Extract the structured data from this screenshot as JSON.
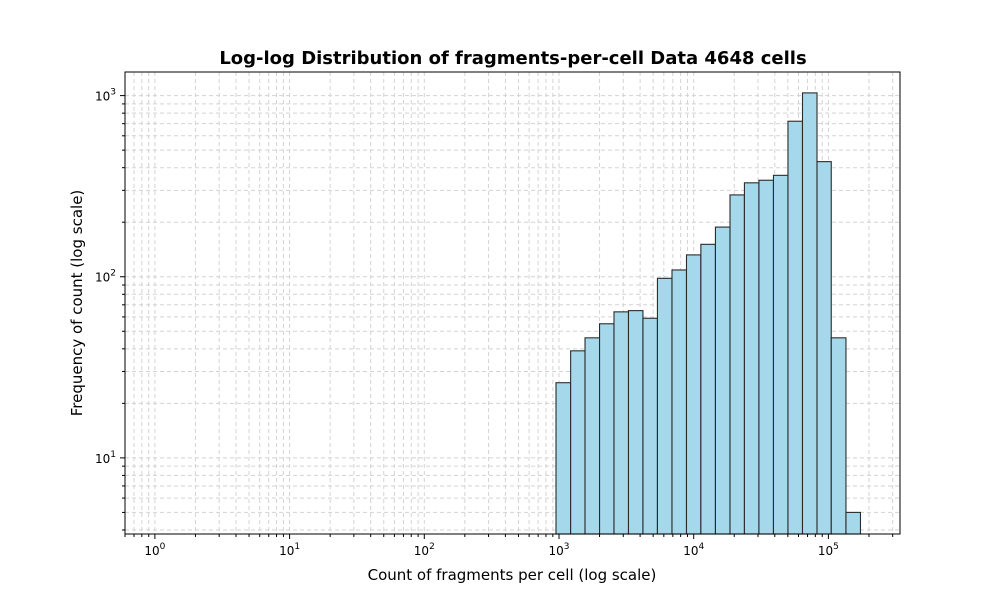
{
  "chart_data": {
    "type": "bar",
    "title": "Log-log Distribution of fragments-per-cell Data 4648 cells",
    "xlabel": "Count of fragments per cell (log scale)",
    "ylabel": "Frequency of count (log scale)",
    "x_scale": "log",
    "y_scale": "log",
    "xlim": [
      0.6,
      340000
    ],
    "ylim": [
      3.8,
      1350
    ],
    "x_ticks": [
      {
        "base": "10",
        "exp": "0",
        "value": 1
      },
      {
        "base": "10",
        "exp": "1",
        "value": 10
      },
      {
        "base": "10",
        "exp": "2",
        "value": 100
      },
      {
        "base": "10",
        "exp": "3",
        "value": 1000
      },
      {
        "base": "10",
        "exp": "4",
        "value": 10000
      },
      {
        "base": "10",
        "exp": "5",
        "value": 100000
      }
    ],
    "y_ticks": [
      {
        "base": "10",
        "exp": "1",
        "value": 10
      },
      {
        "base": "10",
        "exp": "2",
        "value": 100
      },
      {
        "base": "10",
        "exp": "3",
        "value": 1000
      }
    ],
    "grid": true,
    "bar_color": "#a6d8ec",
    "edge_color": "#2b2b2b",
    "bins": [
      {
        "x0": 950,
        "x1": 1220,
        "count": 26
      },
      {
        "x0": 1220,
        "x1": 1560,
        "count": 39
      },
      {
        "x0": 1560,
        "x1": 2000,
        "count": 46
      },
      {
        "x0": 2000,
        "x1": 2560,
        "count": 55
      },
      {
        "x0": 2560,
        "x1": 3280,
        "count": 64
      },
      {
        "x0": 3280,
        "x1": 4200,
        "count": 65
      },
      {
        "x0": 4200,
        "x1": 5380,
        "count": 59
      },
      {
        "x0": 5380,
        "x1": 6900,
        "count": 98
      },
      {
        "x0": 6900,
        "x1": 8840,
        "count": 109
      },
      {
        "x0": 8840,
        "x1": 11300,
        "count": 132
      },
      {
        "x0": 11300,
        "x1": 14500,
        "count": 151
      },
      {
        "x0": 14500,
        "x1": 18600,
        "count": 188
      },
      {
        "x0": 18600,
        "x1": 23800,
        "count": 283
      },
      {
        "x0": 23800,
        "x1": 30500,
        "count": 330
      },
      {
        "x0": 30500,
        "x1": 39100,
        "count": 341
      },
      {
        "x0": 39100,
        "x1": 50100,
        "count": 363
      },
      {
        "x0": 50100,
        "x1": 64200,
        "count": 722
      },
      {
        "x0": 64200,
        "x1": 82300,
        "count": 1035
      },
      {
        "x0": 82300,
        "x1": 105000,
        "count": 432
      },
      {
        "x0": 105000,
        "x1": 135000,
        "count": 46
      },
      {
        "x0": 135000,
        "x1": 173000,
        "count": 5
      }
    ]
  }
}
